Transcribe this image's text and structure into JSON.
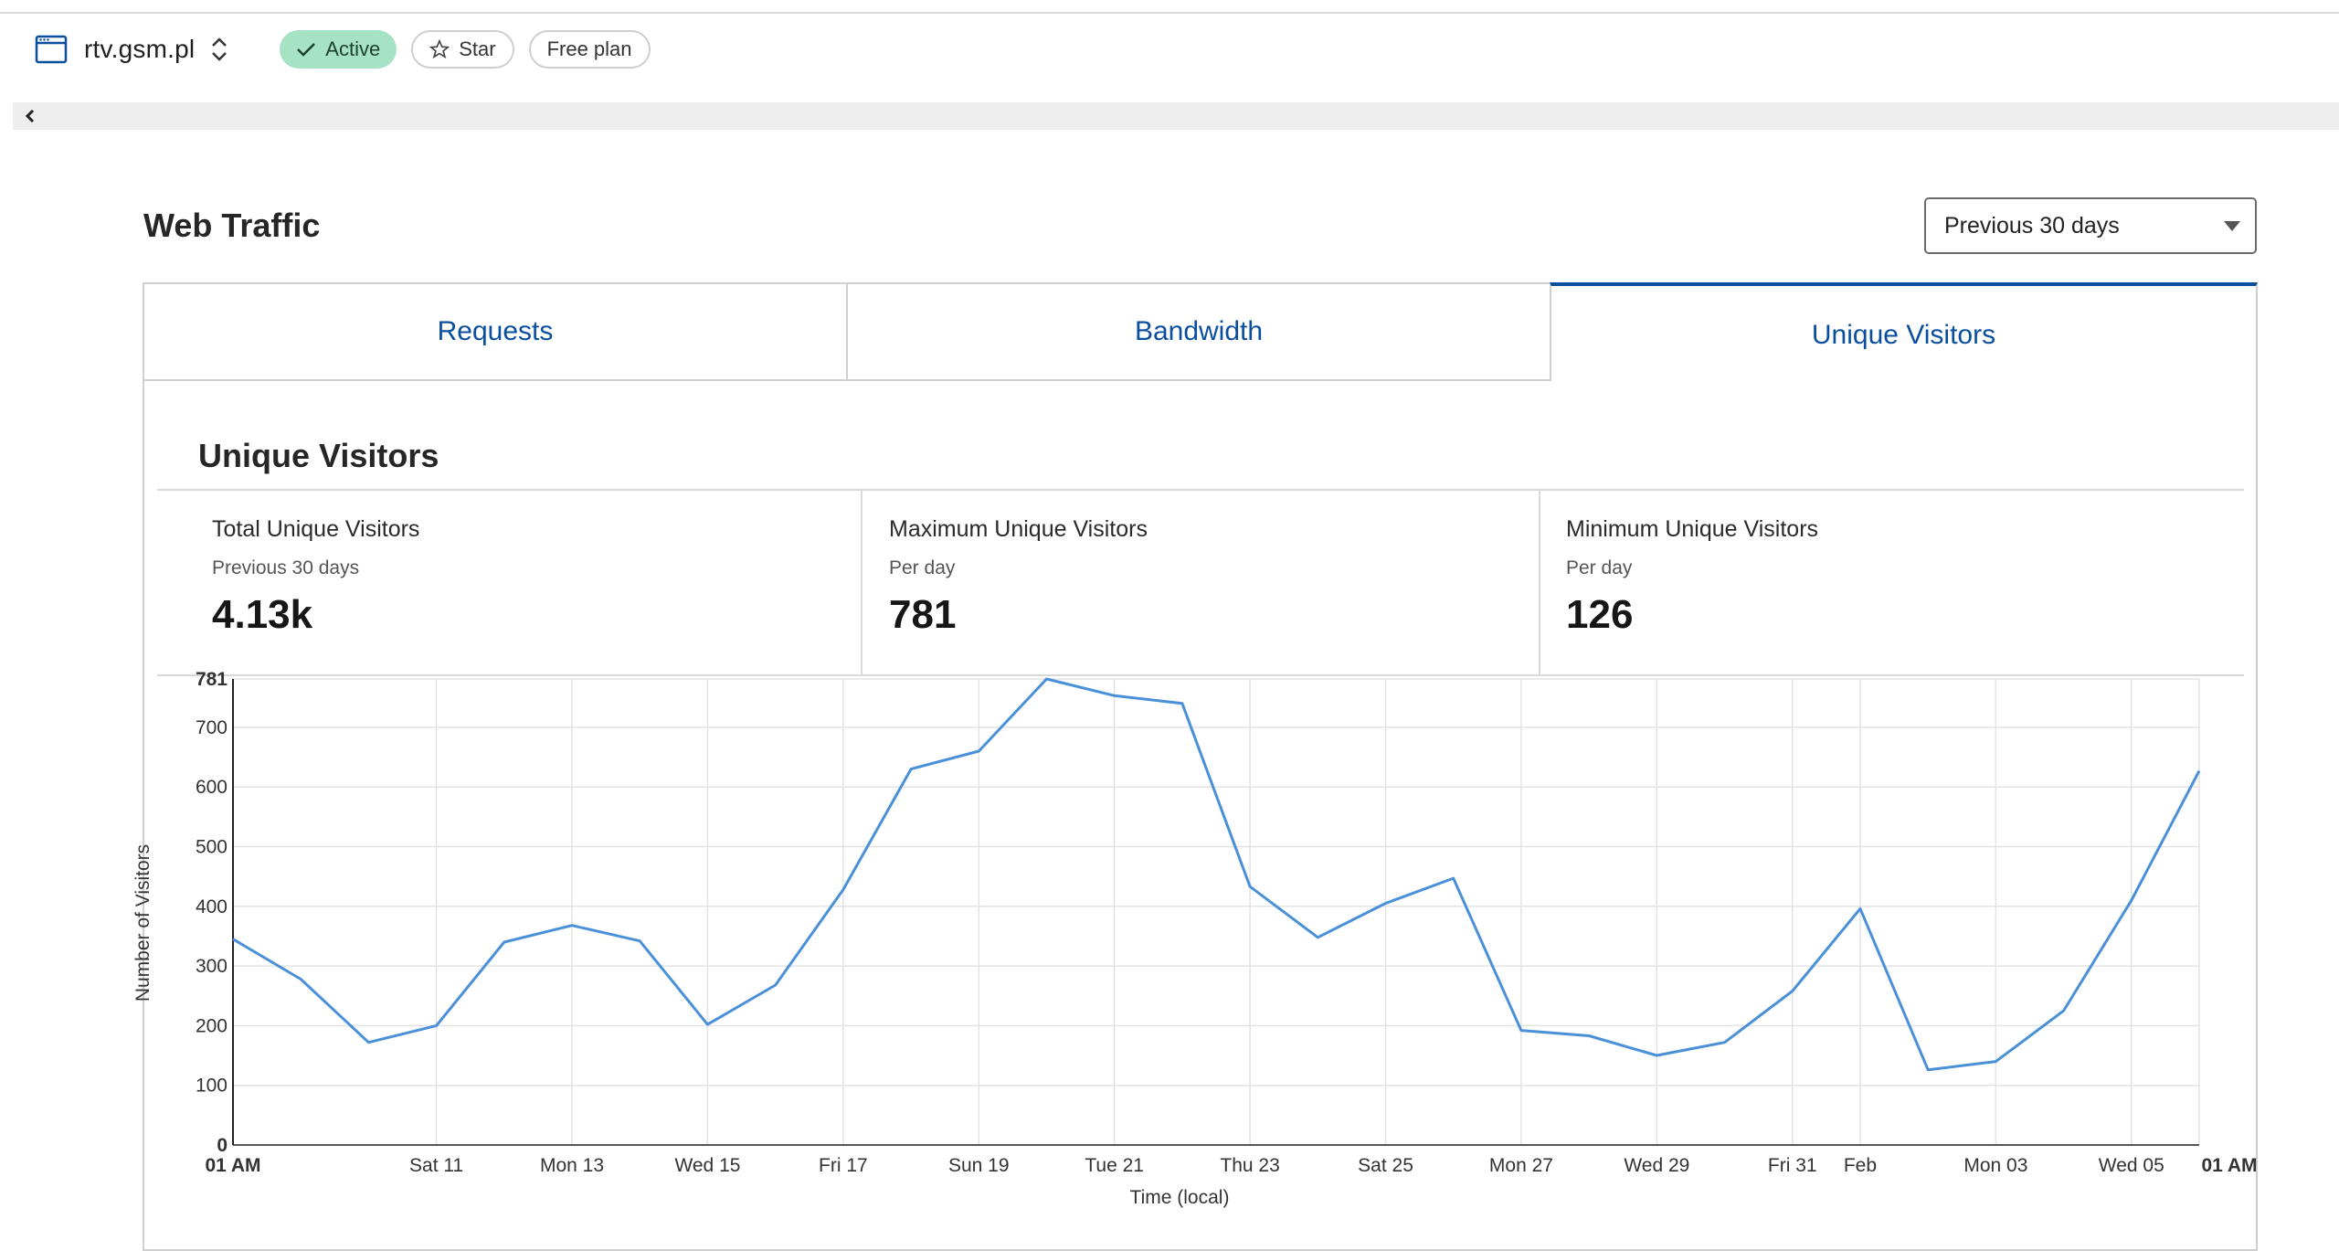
{
  "zone": {
    "name": "rtv.gsm.pl",
    "status_label": "Active",
    "star_label": "Star",
    "plan_label": "Free plan"
  },
  "page": {
    "title": "Web Traffic",
    "range_selected": "Previous 30 days"
  },
  "tabs": [
    {
      "label": "Requests"
    },
    {
      "label": "Bandwidth"
    },
    {
      "label": "Unique Visitors"
    }
  ],
  "section": {
    "title": "Unique Visitors",
    "stats": [
      {
        "label": "Total Unique Visitors",
        "sub": "Previous 30 days",
        "value": "4.13k"
      },
      {
        "label": "Maximum Unique Visitors",
        "sub": "Per day",
        "value": "781"
      },
      {
        "label": "Minimum Unique Visitors",
        "sub": "Per day",
        "value": "126"
      }
    ]
  },
  "colors": {
    "accent": "#0a4f9e",
    "line": "#4a90d9",
    "active_badge": "#a6e2c4"
  },
  "chart_data": {
    "type": "line",
    "ylabel": "Number of Visitors",
    "xlabel": "Time (local)",
    "ylim": [
      0,
      781
    ],
    "yticks": [
      0,
      100,
      200,
      300,
      400,
      500,
      600,
      700,
      781
    ],
    "grid": true,
    "x_tick_labels": [
      {
        "day": 0,
        "label": "01 AM",
        "bold": true
      },
      {
        "day": 3,
        "label": "Sat 11"
      },
      {
        "day": 5,
        "label": "Mon 13"
      },
      {
        "day": 7,
        "label": "Wed 15"
      },
      {
        "day": 9,
        "label": "Fri 17"
      },
      {
        "day": 11,
        "label": "Sun 19"
      },
      {
        "day": 13,
        "label": "Tue 21"
      },
      {
        "day": 15,
        "label": "Thu 23"
      },
      {
        "day": 17,
        "label": "Sat 25"
      },
      {
        "day": 19,
        "label": "Mon 27"
      },
      {
        "day": 21,
        "label": "Wed 29"
      },
      {
        "day": 23,
        "label": "Fri 31"
      },
      {
        "day": 24,
        "label": "Feb"
      },
      {
        "day": 26,
        "label": "Mon 03"
      },
      {
        "day": 28,
        "label": "Wed 05"
      },
      {
        "day": 29,
        "label": "01 AM",
        "bold": true
      }
    ],
    "series": [
      {
        "values": [
          345,
          278,
          172,
          200,
          340,
          368,
          342,
          202,
          268,
          428,
          630,
          660,
          781,
          753,
          740,
          433,
          348,
          405,
          447,
          192,
          183,
          150,
          172,
          258,
          396,
          126,
          140,
          225,
          410,
          627
        ]
      }
    ]
  }
}
